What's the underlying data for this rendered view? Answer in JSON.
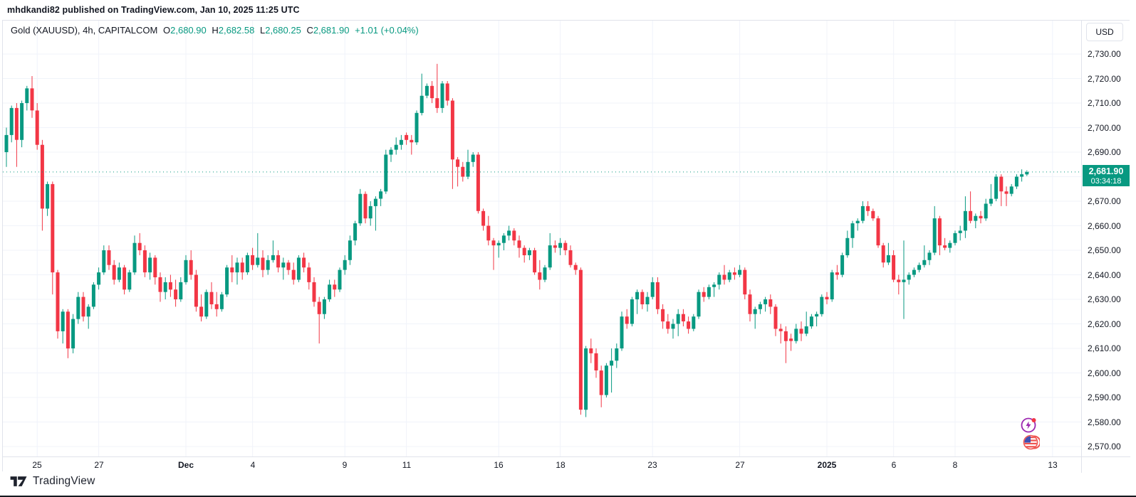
{
  "attribution": "mhdkandi82 published on TradingView.com, Jan 10, 2025 11:25 UTC",
  "legend": {
    "symbol": "Gold (XAUUSD), 4h, CAPITALCOM",
    "o_label": "O",
    "o_value": "2,680.90",
    "h_label": "H",
    "h_value": "2,682.58",
    "l_label": "L",
    "l_value": "2,680.25",
    "c_label": "C",
    "c_value": "2,681.90",
    "change": "+1.01 (+0.04%)"
  },
  "price_axis": {
    "currency_button": "USD",
    "badge": {
      "price": "2,681.90",
      "countdown": "03:34:18"
    },
    "ticks": [
      {
        "text": "2,730.00",
        "price": 2730
      },
      {
        "text": "2,720.00",
        "price": 2720
      },
      {
        "text": "2,710.00",
        "price": 2710
      },
      {
        "text": "2,700.00",
        "price": 2700
      },
      {
        "text": "2,690.00",
        "price": 2690
      },
      {
        "text": "2,680.00",
        "price": 2680
      },
      {
        "text": "2,670.00",
        "price": 2670
      },
      {
        "text": "2,660.00",
        "price": 2660
      },
      {
        "text": "2,650.00",
        "price": 2650
      },
      {
        "text": "2,640.00",
        "price": 2640
      },
      {
        "text": "2,630.00",
        "price": 2630
      },
      {
        "text": "2,620.00",
        "price": 2620
      },
      {
        "text": "2,610.00",
        "price": 2610
      },
      {
        "text": "2,600.00",
        "price": 2600
      },
      {
        "text": "2,590.00",
        "price": 2590
      },
      {
        "text": "2,580.00",
        "price": 2580
      },
      {
        "text": "2,570.00",
        "price": 2570
      }
    ]
  },
  "time_axis": {
    "labels": [
      {
        "text": "25",
        "i": 6,
        "bold": false
      },
      {
        "text": "27",
        "i": 18,
        "bold": false
      },
      {
        "text": "Dec",
        "i": 35,
        "bold": true
      },
      {
        "text": "4",
        "i": 48,
        "bold": false
      },
      {
        "text": "9",
        "i": 66,
        "bold": false
      },
      {
        "text": "11",
        "i": 78,
        "bold": false
      },
      {
        "text": "16",
        "i": 96,
        "bold": false
      },
      {
        "text": "18",
        "i": 108,
        "bold": false
      },
      {
        "text": "23",
        "i": 126,
        "bold": false
      },
      {
        "text": "27",
        "i": 143,
        "bold": false
      },
      {
        "text": "2025",
        "i": 160,
        "bold": true
      },
      {
        "text": "6",
        "i": 173,
        "bold": false
      },
      {
        "text": "8",
        "i": 185,
        "bold": false
      },
      {
        "text": "13",
        "i": 204,
        "bold": false
      }
    ]
  },
  "footer": {
    "brand": "TradingView"
  },
  "event_icons": [
    {
      "name": "economic-event-lightning-icon"
    },
    {
      "name": "us-flag-event-icon"
    }
  ],
  "chart_data": {
    "type": "candlestick",
    "title": "Gold (XAUUSD), 4h, CAPITALCOM",
    "symbol": "XAUUSD",
    "interval": "4h",
    "exchange": "CAPITALCOM",
    "current_ohlc": {
      "open": 2680.9,
      "high": 2682.58,
      "low": 2680.25,
      "close": 2681.9,
      "change": 1.01,
      "change_pct": 0.04
    },
    "current_price": 2681.9,
    "countdown": "03:34:18",
    "ylim": [
      2570,
      2730
    ],
    "y_tick_step": 10,
    "x_range_dates": [
      "Nov 25 2024",
      "Jan 10 2025"
    ],
    "grid": true,
    "colors": {
      "up": "#089981",
      "down": "#f23645",
      "grid": "#f0f3fa",
      "price_line": "#089981",
      "badge_bg": "#089981",
      "text": "#131722"
    },
    "candles": [
      [
        2690,
        2700,
        2684,
        2697
      ],
      [
        2697,
        2709,
        2694,
        2708
      ],
      [
        2708,
        2710,
        2684,
        2695
      ],
      [
        2695,
        2711,
        2692,
        2710
      ],
      [
        2710,
        2717,
        2707,
        2716
      ],
      [
        2716,
        2721,
        2704,
        2707
      ],
      [
        2707,
        2710,
        2691,
        2693
      ],
      [
        2693,
        2695,
        2658,
        2667
      ],
      [
        2667,
        2678,
        2664,
        2677
      ],
      [
        2677,
        2678,
        2632,
        2641
      ],
      [
        2641,
        2642,
        2614,
        2617
      ],
      [
        2617,
        2626,
        2612,
        2625
      ],
      [
        2625,
        2626,
        2606,
        2610
      ],
      [
        2610,
        2624,
        2608,
        2622
      ],
      [
        2622,
        2633,
        2620,
        2631
      ],
      [
        2631,
        2633,
        2621,
        2623
      ],
      [
        2623,
        2628,
        2618,
        2627
      ],
      [
        2627,
        2637,
        2626,
        2636
      ],
      [
        2636,
        2643,
        2634,
        2641
      ],
      [
        2641,
        2652,
        2640,
        2650
      ],
      [
        2650,
        2652,
        2642,
        2644
      ],
      [
        2644,
        2646,
        2636,
        2638
      ],
      [
        2638,
        2645,
        2637,
        2643
      ],
      [
        2643,
        2644,
        2632,
        2634
      ],
      [
        2634,
        2642,
        2633,
        2641
      ],
      [
        2641,
        2656,
        2640,
        2653
      ],
      [
        2653,
        2657,
        2648,
        2650
      ],
      [
        2650,
        2652,
        2639,
        2641
      ],
      [
        2641,
        2649,
        2638,
        2647
      ],
      [
        2647,
        2648,
        2636,
        2639
      ],
      [
        2639,
        2641,
        2629,
        2633
      ],
      [
        2633,
        2639,
        2630,
        2637
      ],
      [
        2637,
        2640,
        2631,
        2634
      ],
      [
        2634,
        2638,
        2627,
        2630
      ],
      [
        2630,
        2639,
        2629,
        2637
      ],
      [
        2637,
        2648,
        2636,
        2646
      ],
      [
        2646,
        2650,
        2638,
        2640
      ],
      [
        2640,
        2642,
        2625,
        2627
      ],
      [
        2627,
        2632,
        2621,
        2623
      ],
      [
        2623,
        2634,
        2622,
        2633
      ],
      [
        2633,
        2637,
        2626,
        2628
      ],
      [
        2628,
        2633,
        2623,
        2626
      ],
      [
        2626,
        2633,
        2625,
        2632
      ],
      [
        2632,
        2644,
        2631,
        2643
      ],
      [
        2643,
        2648,
        2637,
        2641
      ],
      [
        2641,
        2647,
        2636,
        2645
      ],
      [
        2645,
        2647,
        2638,
        2641
      ],
      [
        2641,
        2649,
        2640,
        2648
      ],
      [
        2648,
        2651,
        2642,
        2644
      ],
      [
        2644,
        2657,
        2643,
        2647
      ],
      [
        2647,
        2650,
        2639,
        2642
      ],
      [
        2642,
        2648,
        2640,
        2646
      ],
      [
        2646,
        2654,
        2645,
        2648
      ],
      [
        2648,
        2650,
        2641,
        2643
      ],
      [
        2643,
        2647,
        2638,
        2645
      ],
      [
        2645,
        2646,
        2640,
        2642
      ],
      [
        2642,
        2645,
        2636,
        2638
      ],
      [
        2638,
        2648,
        2637,
        2647
      ],
      [
        2647,
        2649,
        2641,
        2643
      ],
      [
        2643,
        2645,
        2634,
        2637
      ],
      [
        2637,
        2639,
        2627,
        2629
      ],
      [
        2629,
        2631,
        2612,
        2624
      ],
      [
        2624,
        2631,
        2622,
        2630
      ],
      [
        2630,
        2638,
        2629,
        2636
      ],
      [
        2636,
        2638,
        2631,
        2634
      ],
      [
        2634,
        2643,
        2633,
        2642
      ],
      [
        2642,
        2648,
        2640,
        2646
      ],
      [
        2646,
        2656,
        2644,
        2654
      ],
      [
        2654,
        2662,
        2652,
        2661
      ],
      [
        2661,
        2675,
        2660,
        2673
      ],
      [
        2673,
        2674,
        2661,
        2663
      ],
      [
        2663,
        2670,
        2660,
        2668
      ],
      [
        2668,
        2672,
        2658,
        2671
      ],
      [
        2671,
        2675,
        2668,
        2674
      ],
      [
        2674,
        2691,
        2673,
        2689
      ],
      [
        2689,
        2692,
        2686,
        2691
      ],
      [
        2691,
        2696,
        2689,
        2693
      ],
      [
        2693,
        2697,
        2691,
        2695
      ],
      [
        2697,
        2698,
        2693,
        2695
      ],
      [
        2695,
        2697,
        2689,
        2694
      ],
      [
        2694,
        2707,
        2693,
        2706
      ],
      [
        2706,
        2722,
        2705,
        2713
      ],
      [
        2713,
        2718,
        2712,
        2717
      ],
      [
        2717,
        2719,
        2710,
        2712
      ],
      [
        2712,
        2726,
        2706,
        2708
      ],
      [
        2708,
        2719,
        2706,
        2718
      ],
      [
        2718,
        2719,
        2709,
        2711
      ],
      [
        2711,
        2712,
        2675,
        2687
      ],
      [
        2687,
        2688,
        2676,
        2684
      ],
      [
        2684,
        2686,
        2678,
        2680
      ],
      [
        2680,
        2691,
        2679,
        2686
      ],
      [
        2686,
        2690,
        2684,
        2689
      ],
      [
        2689,
        2690,
        2665,
        2666
      ],
      [
        2666,
        2667,
        2658,
        2660
      ],
      [
        2660,
        2664,
        2652,
        2654
      ],
      [
        2654,
        2655,
        2642,
        2652
      ],
      [
        2652,
        2654,
        2647,
        2653
      ],
      [
        2653,
        2657,
        2650,
        2656
      ],
      [
        2656,
        2660,
        2654,
        2658
      ],
      [
        2658,
        2659,
        2652,
        2654
      ],
      [
        2654,
        2656,
        2647,
        2651
      ],
      [
        2651,
        2652,
        2645,
        2648
      ],
      [
        2648,
        2651,
        2646,
        2650
      ],
      [
        2650,
        2651,
        2640,
        2641
      ],
      [
        2641,
        2646,
        2634,
        2638
      ],
      [
        2638,
        2644,
        2637,
        2643
      ],
      [
        2643,
        2657,
        2642,
        2652
      ],
      [
        2652,
        2654,
        2649,
        2651
      ],
      [
        2651,
        2655,
        2648,
        2653
      ],
      [
        2653,
        2654,
        2648,
        2650
      ],
      [
        2650,
        2652,
        2643,
        2644
      ],
      [
        2644,
        2645,
        2640,
        2642
      ],
      [
        2642,
        2643,
        2583,
        2585
      ],
      [
        2585,
        2611,
        2582,
        2610
      ],
      [
        2610,
        2614,
        2604,
        2608
      ],
      [
        2608,
        2610,
        2598,
        2601
      ],
      [
        2601,
        2603,
        2586,
        2591
      ],
      [
        2591,
        2604,
        2590,
        2603
      ],
      [
        2603,
        2610,
        2592,
        2605
      ],
      [
        2605,
        2612,
        2602,
        2610
      ],
      [
        2610,
        2625,
        2609,
        2623
      ],
      [
        2623,
        2626,
        2618,
        2620
      ],
      [
        2620,
        2631,
        2619,
        2630
      ],
      [
        2630,
        2634,
        2624,
        2633
      ],
      [
        2633,
        2634,
        2626,
        2628
      ],
      [
        2628,
        2633,
        2625,
        2631
      ],
      [
        2631,
        2639,
        2630,
        2637
      ],
      [
        2637,
        2639,
        2624,
        2626
      ],
      [
        2626,
        2628,
        2618,
        2621
      ],
      [
        2621,
        2624,
        2616,
        2618
      ],
      [
        2618,
        2622,
        2614,
        2620
      ],
      [
        2620,
        2626,
        2615,
        2624
      ],
      [
        2624,
        2626,
        2619,
        2621
      ],
      [
        2621,
        2623,
        2616,
        2618
      ],
      [
        2618,
        2624,
        2617,
        2623
      ],
      [
        2623,
        2634,
        2622,
        2633
      ],
      [
        2633,
        2635,
        2629,
        2631
      ],
      [
        2631,
        2636,
        2630,
        2635
      ],
      [
        2635,
        2637,
        2631,
        2636
      ],
      [
        2636,
        2641,
        2634,
        2640
      ],
      [
        2640,
        2644,
        2636,
        2638
      ],
      [
        2638,
        2642,
        2637,
        2641
      ],
      [
        2641,
        2643,
        2638,
        2640
      ],
      [
        2640,
        2644,
        2639,
        2642
      ],
      [
        2642,
        2643,
        2630,
        2632
      ],
      [
        2632,
        2634,
        2621,
        2624
      ],
      [
        2624,
        2627,
        2618,
        2626
      ],
      [
        2626,
        2629,
        2624,
        2628
      ],
      [
        2628,
        2631,
        2625,
        2630
      ],
      [
        2630,
        2632,
        2624,
        2627
      ],
      [
        2627,
        2628,
        2615,
        2618
      ],
      [
        2618,
        2620,
        2612,
        2617
      ],
      [
        2617,
        2619,
        2604,
        2613
      ],
      [
        2614,
        2616,
        2609,
        2613
      ],
      [
        2613,
        2620,
        2612,
        2618
      ],
      [
        2618,
        2621,
        2613,
        2616
      ],
      [
        2616,
        2625,
        2615,
        2619
      ],
      [
        2619,
        2624,
        2618,
        2623
      ],
      [
        2623,
        2625,
        2619,
        2624
      ],
      [
        2624,
        2632,
        2623,
        2631
      ],
      [
        2631,
        2633,
        2628,
        2630
      ],
      [
        2630,
        2642,
        2629,
        2641
      ],
      [
        2641,
        2644,
        2638,
        2640
      ],
      [
        2640,
        2649,
        2639,
        2648
      ],
      [
        2648,
        2658,
        2647,
        2655
      ],
      [
        2655,
        2662,
        2651,
        2661
      ],
      [
        2661,
        2663,
        2658,
        2662
      ],
      [
        2662,
        2670,
        2661,
        2668
      ],
      [
        2668,
        2670,
        2664,
        2666
      ],
      [
        2666,
        2667,
        2662,
        2663
      ],
      [
        2663,
        2664,
        2651,
        2652
      ],
      [
        2652,
        2653,
        2643,
        2645
      ],
      [
        2645,
        2653,
        2644,
        2648
      ],
      [
        2648,
        2650,
        2637,
        2638
      ],
      [
        2638,
        2640,
        2632,
        2637
      ],
      [
        2637,
        2654,
        2622,
        2638
      ],
      [
        2638,
        2641,
        2636,
        2640
      ],
      [
        2640,
        2643,
        2639,
        2642
      ],
      [
        2642,
        2645,
        2641,
        2644
      ],
      [
        2644,
        2652,
        2643,
        2646
      ],
      [
        2646,
        2650,
        2644,
        2649
      ],
      [
        2649,
        2668,
        2648,
        2663
      ],
      [
        2663,
        2664,
        2648,
        2652
      ],
      [
        2652,
        2655,
        2650,
        2651
      ],
      [
        2651,
        2654,
        2649,
        2653
      ],
      [
        2653,
        2658,
        2652,
        2657
      ],
      [
        2657,
        2660,
        2654,
        2658
      ],
      [
        2658,
        2672,
        2655,
        2666
      ],
      [
        2666,
        2674,
        2661,
        2662
      ],
      [
        2662,
        2665,
        2659,
        2664
      ],
      [
        2664,
        2666,
        2661,
        2663
      ],
      [
        2663,
        2671,
        2662,
        2669
      ],
      [
        2669,
        2677,
        2668,
        2671
      ],
      [
        2671,
        2681,
        2670,
        2680
      ],
      [
        2680,
        2681,
        2668,
        2674
      ],
      [
        2674,
        2676,
        2668,
        2673
      ],
      [
        2673,
        2677,
        2672,
        2676
      ],
      [
        2676,
        2681,
        2675,
        2680
      ],
      [
        2680,
        2683,
        2678,
        2681
      ],
      [
        2680.9,
        2682.58,
        2680.25,
        2681.9
      ]
    ]
  }
}
